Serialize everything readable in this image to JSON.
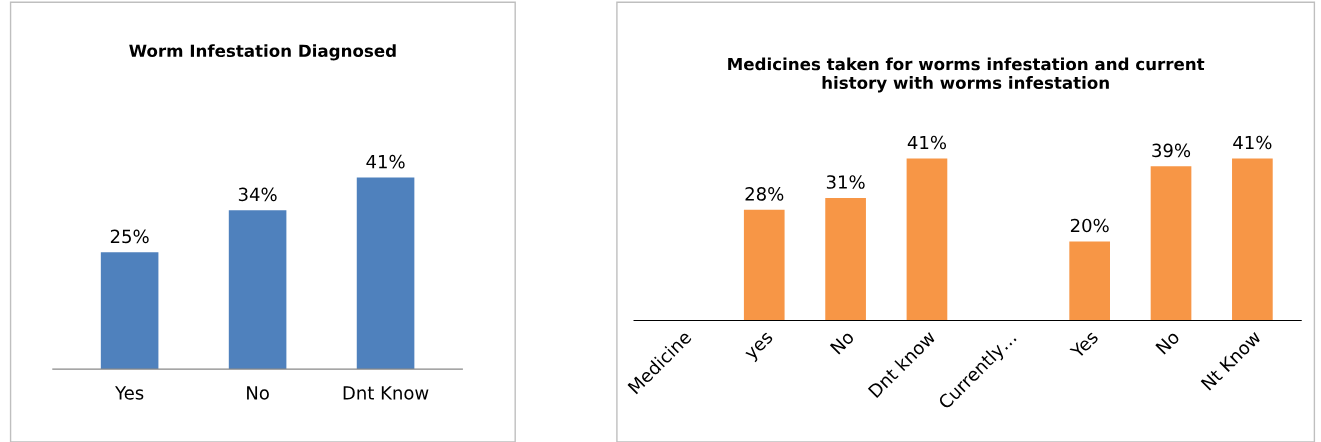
{
  "chart_data": [
    {
      "type": "bar",
      "title": "Worm Infestation Diagnosed",
      "categories": [
        "Yes",
        "No",
        "Dnt Know"
      ],
      "values": [
        25,
        34,
        41
      ],
      "value_labels": [
        "25%",
        "34%",
        "41%"
      ],
      "color": "#4f81bd"
    },
    {
      "type": "bar",
      "title": "Medicines taken for worms infestation and current\nhistory with worms infestation",
      "categories": [
        "Medicine",
        "yes",
        "No",
        "Dnt know",
        "Currently…",
        "Yes",
        "No",
        "Nt Know"
      ],
      "values": [
        null,
        28,
        31,
        41,
        null,
        20,
        39,
        41
      ],
      "value_labels": [
        null,
        "28%",
        "31%",
        "41%",
        null,
        "20%",
        "39%",
        "41%"
      ],
      "color": "#f79646"
    }
  ]
}
